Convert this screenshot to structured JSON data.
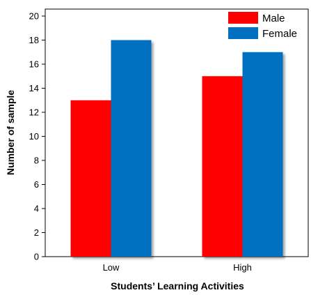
{
  "chart_data": {
    "type": "bar",
    "categories": [
      "Low",
      "High"
    ],
    "series": [
      {
        "name": "Male",
        "values": [
          13,
          15
        ],
        "color": "#ff0000"
      },
      {
        "name": "Female",
        "values": [
          18,
          17
        ],
        "color": "#0070c0"
      }
    ],
    "xlabel": "Students’ Learning Activities",
    "ylabel": "Number of sample",
    "ylim": [
      0,
      20
    ],
    "yticks": [
      0,
      2,
      4,
      6,
      8,
      10,
      12,
      14,
      16,
      18,
      20
    ],
    "grid": false,
    "legend_position": "top-right"
  }
}
